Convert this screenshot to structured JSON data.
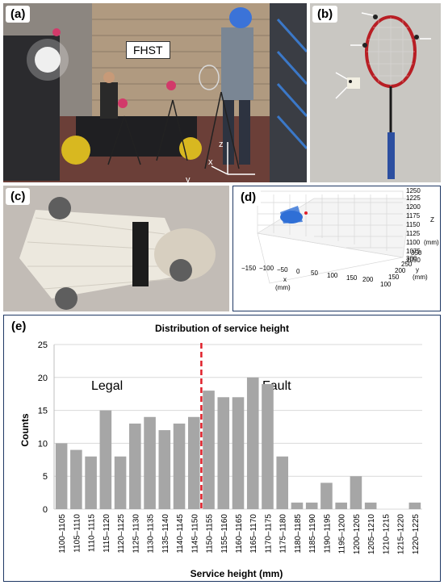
{
  "panels": {
    "a": {
      "letter": "(a)",
      "callout": "FHST",
      "axes": {
        "z": "z",
        "x": "x",
        "y": "y"
      }
    },
    "b": {
      "letter": "(b)"
    },
    "c": {
      "letter": "(c)"
    },
    "d": {
      "letter": "(d)",
      "x_ticks": [
        "−150",
        "−100",
        "−50",
        "0",
        "50",
        "100",
        "150",
        "200"
      ],
      "x_label_1": "x",
      "x_label_2": "(mm)",
      "y_ticks": [
        "100",
        "150",
        "200",
        "250",
        "300",
        "350"
      ],
      "y_label_1": "y",
      "y_label_2": "(mm)",
      "z_ticks": [
        "1050",
        "1075",
        "1100",
        "1125",
        "1150",
        "1175",
        "1200",
        "1225",
        "1250"
      ],
      "z_label_1": "Z",
      "z_label_2": "(mm)"
    },
    "e": {
      "letter": "(e)"
    }
  },
  "chart_data": {
    "type": "bar",
    "title": "Distribution of service height",
    "xlabel": "Service height (mm)",
    "ylabel": "Counts",
    "ylim": [
      0,
      25
    ],
    "yticks": [
      0,
      5,
      10,
      15,
      20,
      25
    ],
    "categories": [
      "1100–1105",
      "1105–1110",
      "1110–1115",
      "1115–1120",
      "1120–1125",
      "1125–1130",
      "1130–1135",
      "1135–1140",
      "1140–1145",
      "1145–1150",
      "1150–1155",
      "1155–1160",
      "1160–1165",
      "1165–1170",
      "1170–1175",
      "1175–1180",
      "1180–1185",
      "1185–1190",
      "1190–1195",
      "1195–1200",
      "1200–1205",
      "1205–1210",
      "1210–1215",
      "1215–1220",
      "1220–1225"
    ],
    "values": [
      10,
      9,
      8,
      15,
      8,
      13,
      14,
      12,
      13,
      14,
      18,
      17,
      17,
      20,
      19,
      8,
      1,
      1,
      4,
      1,
      5,
      1,
      0,
      0,
      1
    ],
    "threshold_after_category_index": 9,
    "annotations": {
      "left": "Legal",
      "right": "Fault"
    },
    "grid": true,
    "colors": {
      "bar": "#a6a6a6",
      "threshold": "#e0202a",
      "grid": "#d9d9d9"
    }
  }
}
